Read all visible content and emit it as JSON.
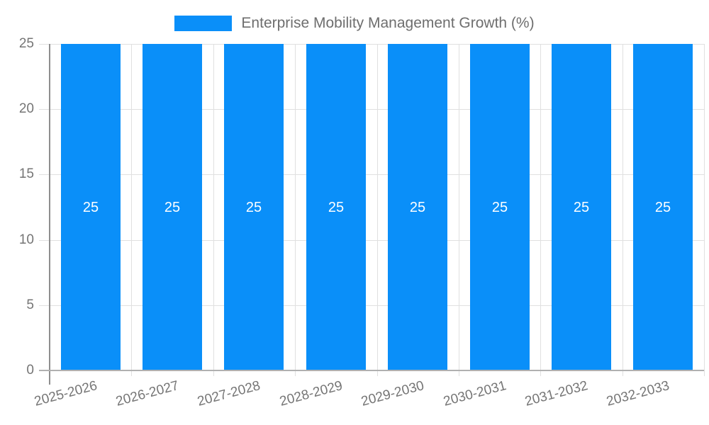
{
  "chart_data": {
    "type": "bar",
    "title": "Enterprise Mobility Management Growth (%)",
    "categories": [
      "2025-2026",
      "2026-2027",
      "2027-2028",
      "2028-2029",
      "2029-2030",
      "2030-2031",
      "2031-2032",
      "2032-2033"
    ],
    "values": [
      25,
      25,
      25,
      25,
      25,
      25,
      25,
      25
    ],
    "bar_labels": [
      "25",
      "25",
      "25",
      "25",
      "25",
      "25",
      "25",
      "25"
    ],
    "xlabel": "",
    "ylabel": "",
    "y_ticks": [
      0,
      5,
      10,
      15,
      20,
      25
    ],
    "ylim": [
      0,
      25
    ],
    "grid": true,
    "legend_position": "top",
    "colors": {
      "bar": "#0a8ff9",
      "bar_label_text": "#ffffff",
      "gridline": "#e0e0e0",
      "zero_line": "#b0b0b0",
      "y_axis_line": "#8e8e8e",
      "axis_text": "#757575",
      "legend_text": "#6e6e6e",
      "background": "#ffffff"
    }
  }
}
